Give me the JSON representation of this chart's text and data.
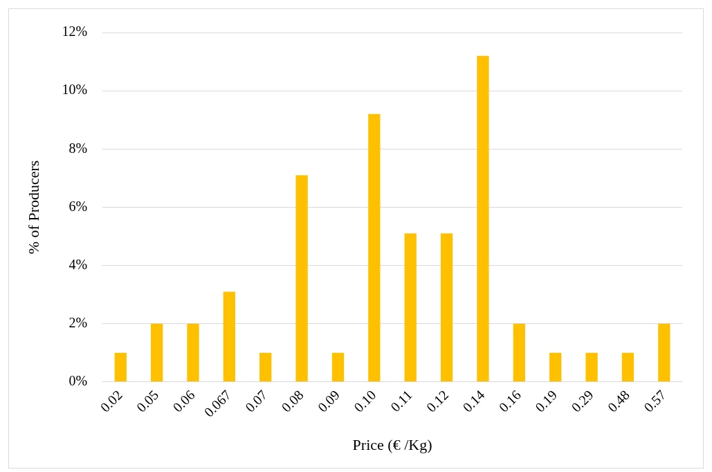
{
  "chart_data": {
    "type": "bar",
    "xlabel": "Price (€ /Kg)",
    "ylabel": "% of Producers",
    "categories": [
      "0.02",
      "0.05",
      "0.06",
      "0.067",
      "0.07",
      "0.08",
      "0.09",
      "0.10",
      "0.11",
      "0.12",
      "0.14",
      "0.16",
      "0.19",
      "0.29",
      "0.48",
      "0.57"
    ],
    "values": [
      1.0,
      2.0,
      2.0,
      3.1,
      1.0,
      7.1,
      1.0,
      9.2,
      5.1,
      5.1,
      11.2,
      2.0,
      1.0,
      1.0,
      1.0,
      2.0
    ],
    "color": "#ffc000",
    "ylim": [
      0,
      12
    ],
    "yticks": [
      {
        "value": 0,
        "label": "0%"
      },
      {
        "value": 2,
        "label": "2%"
      },
      {
        "value": 4,
        "label": "4%"
      },
      {
        "value": 6,
        "label": "6%"
      },
      {
        "value": 8,
        "label": "8%"
      },
      {
        "value": 10,
        "label": "10%"
      },
      {
        "value": 12,
        "label": "12%"
      }
    ],
    "grid": "y",
    "legend": false
  }
}
